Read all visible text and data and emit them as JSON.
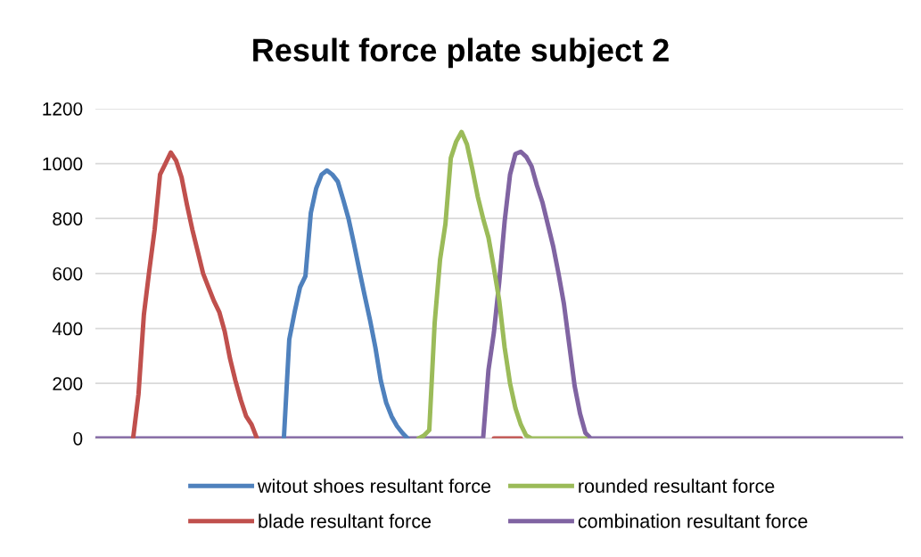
{
  "chart_data": {
    "type": "line",
    "title": "Result force plate subject 2",
    "categories": [
      null,
      null,
      null,
      null,
      null,
      null,
      null,
      null,
      null,
      null,
      null,
      null,
      null,
      null,
      null,
      null,
      null,
      null,
      null,
      null,
      null,
      null,
      null,
      null,
      null,
      null,
      null,
      null,
      null,
      null,
      null,
      null,
      null,
      null,
      null,
      null,
      null,
      null,
      null,
      null,
      null,
      null,
      null,
      null,
      null,
      null,
      null,
      null,
      null,
      null,
      null,
      null,
      null,
      null,
      null,
      null,
      null,
      null,
      null,
      null,
      null,
      null,
      null,
      null,
      null,
      null,
      null,
      null,
      null,
      null,
      null,
      null,
      null,
      null,
      null,
      null,
      null,
      null,
      null,
      null,
      null,
      null,
      null,
      null,
      null,
      null,
      null,
      null,
      null,
      null,
      null,
      null,
      null,
      null,
      null,
      null,
      null,
      null,
      null,
      null,
      null,
      null,
      null,
      null,
      null,
      null,
      null,
      null,
      null,
      null,
      null,
      null,
      null,
      null,
      null,
      null,
      null,
      null,
      null,
      null,
      null,
      null,
      null,
      null,
      null,
      null,
      null,
      null,
      null,
      null,
      null,
      null,
      null,
      null,
      null,
      null,
      null,
      null,
      null,
      null,
      null,
      null,
      null,
      null,
      null,
      null,
      null,
      null,
      null,
      null,
      null
    ],
    "series": [
      {
        "name": "witout shoes resultant force",
        "color": "#4f81bd",
        "values": [
          null,
          null,
          null,
          null,
          null,
          null,
          null,
          null,
          null,
          null,
          null,
          null,
          null,
          null,
          null,
          null,
          null,
          null,
          null,
          null,
          null,
          null,
          null,
          null,
          null,
          null,
          null,
          null,
          null,
          null,
          null,
          null,
          null,
          null,
          null,
          0,
          360,
          460,
          550,
          590,
          820,
          910,
          960,
          975,
          960,
          935,
          870,
          800,
          710,
          613,
          520,
          430,
          330,
          210,
          130,
          80,
          45,
          20,
          0,
          null,
          null,
          null,
          null,
          null,
          null,
          null,
          null,
          null,
          null,
          null,
          null,
          null,
          null,
          null,
          null,
          null,
          null,
          null,
          null,
          null,
          null,
          null,
          null,
          null,
          null,
          null,
          null,
          null,
          null,
          null,
          null,
          null,
          null,
          null,
          null,
          null,
          null,
          null,
          null,
          null,
          null,
          null,
          null,
          null,
          null,
          null,
          null,
          null,
          null,
          null,
          null,
          null,
          null,
          null,
          null,
          null,
          null,
          null,
          null,
          null,
          null,
          null,
          null,
          null,
          null,
          null,
          null,
          null,
          null,
          null,
          null,
          null,
          null,
          null,
          null,
          null,
          null,
          null,
          null,
          null,
          null,
          null,
          null,
          null,
          null,
          null,
          null,
          null,
          null,
          null,
          null
        ]
      },
      {
        "name": "blade resultant force",
        "color": "#c0504d",
        "values": [
          null,
          null,
          null,
          null,
          null,
          null,
          null,
          0,
          160,
          450,
          610,
          760,
          960,
          1000,
          1040,
          1010,
          950,
          850,
          760,
          680,
          600,
          550,
          500,
          460,
          390,
          290,
          210,
          140,
          80,
          50,
          0,
          null,
          null,
          null,
          null,
          null,
          null,
          null,
          null,
          null,
          null,
          null,
          null,
          null,
          null,
          null,
          null,
          null,
          null,
          null,
          null,
          null,
          null,
          null,
          null,
          null,
          null,
          null,
          null,
          null,
          null,
          null,
          null,
          null,
          null,
          null,
          null,
          null,
          null,
          null,
          null,
          null,
          null,
          null,
          0,
          0,
          0,
          0,
          0,
          0,
          null,
          null,
          null,
          null,
          null,
          null,
          null,
          null,
          null,
          null,
          null,
          null,
          null,
          null,
          null,
          null,
          null,
          null,
          null,
          null,
          null,
          null,
          null,
          null,
          null,
          null,
          null,
          null,
          null,
          null,
          null,
          null,
          null,
          null,
          null,
          null,
          null,
          null,
          null,
          null,
          null,
          null,
          null,
          null,
          null,
          null,
          null,
          null,
          null,
          null,
          null,
          null,
          null,
          null,
          null,
          null,
          null,
          null,
          null,
          null,
          null,
          null,
          null,
          null,
          null,
          null,
          null,
          null,
          null,
          null,
          null
        ]
      },
      {
        "name": "rounded resultant force",
        "color": "#9bbb59",
        "values": [
          null,
          null,
          null,
          null,
          null,
          null,
          null,
          null,
          null,
          null,
          null,
          null,
          null,
          null,
          null,
          null,
          null,
          null,
          null,
          null,
          null,
          null,
          null,
          null,
          null,
          null,
          null,
          null,
          null,
          null,
          null,
          null,
          null,
          null,
          null,
          null,
          null,
          null,
          null,
          null,
          null,
          null,
          null,
          null,
          null,
          null,
          null,
          null,
          null,
          null,
          null,
          null,
          null,
          null,
          null,
          null,
          null,
          null,
          null,
          null,
          0,
          10,
          30,
          420,
          650,
          780,
          1020,
          1080,
          1115,
          1070,
          980,
          880,
          800,
          730,
          620,
          500,
          330,
          200,
          110,
          50,
          10,
          0,
          0,
          0,
          0,
          0,
          0,
          0,
          0,
          0,
          0,
          0,
          null,
          null,
          null,
          null,
          null,
          null,
          null,
          null,
          null,
          null,
          null,
          null,
          null,
          null,
          null,
          null,
          null,
          null,
          null,
          null,
          null,
          null,
          null,
          null,
          null,
          null,
          null,
          null,
          null,
          null,
          null,
          null,
          null,
          null,
          null,
          null,
          null,
          null,
          null,
          null,
          null,
          null,
          null,
          null,
          null,
          null,
          null,
          null,
          null,
          null,
          null,
          null,
          null,
          null,
          null,
          null,
          null,
          null,
          null
        ]
      },
      {
        "name": "combination resultant force",
        "color": "#8064a2",
        "values": [
          0,
          0,
          0,
          0,
          0,
          0,
          0,
          0,
          0,
          0,
          0,
          0,
          0,
          0,
          0,
          0,
          0,
          0,
          0,
          0,
          0,
          0,
          0,
          0,
          0,
          0,
          0,
          0,
          0,
          0,
          0,
          0,
          0,
          0,
          0,
          0,
          0,
          0,
          0,
          0,
          0,
          0,
          0,
          0,
          0,
          0,
          0,
          0,
          0,
          0,
          0,
          0,
          0,
          0,
          0,
          0,
          0,
          0,
          0,
          0,
          0,
          0,
          0,
          0,
          0,
          0,
          0,
          0,
          0,
          0,
          0,
          0,
          0,
          250,
          385,
          570,
          790,
          960,
          1035,
          1043,
          1025,
          990,
          920,
          860,
          780,
          700,
          600,
          490,
          340,
          190,
          90,
          20,
          0,
          0,
          0,
          0,
          0,
          0,
          0,
          0,
          0,
          0,
          0,
          0,
          0,
          0,
          0,
          0,
          0,
          0,
          0,
          0,
          0,
          0,
          0,
          0,
          0,
          0,
          0,
          0,
          0,
          0,
          0,
          0,
          0,
          0,
          0,
          0,
          0,
          0,
          0,
          0,
          0,
          0,
          0,
          0,
          0,
          0,
          0,
          0,
          0,
          0,
          0,
          0,
          0,
          0,
          0,
          0,
          0,
          0,
          0
        ]
      }
    ],
    "ylim": [
      0,
      1200
    ],
    "yticks": [
      0,
      200,
      400,
      600,
      800,
      1000,
      1200
    ],
    "grid": "y",
    "legend": "bottom",
    "tick_labels": "y",
    "marker": "none",
    "line_style": "solid"
  }
}
